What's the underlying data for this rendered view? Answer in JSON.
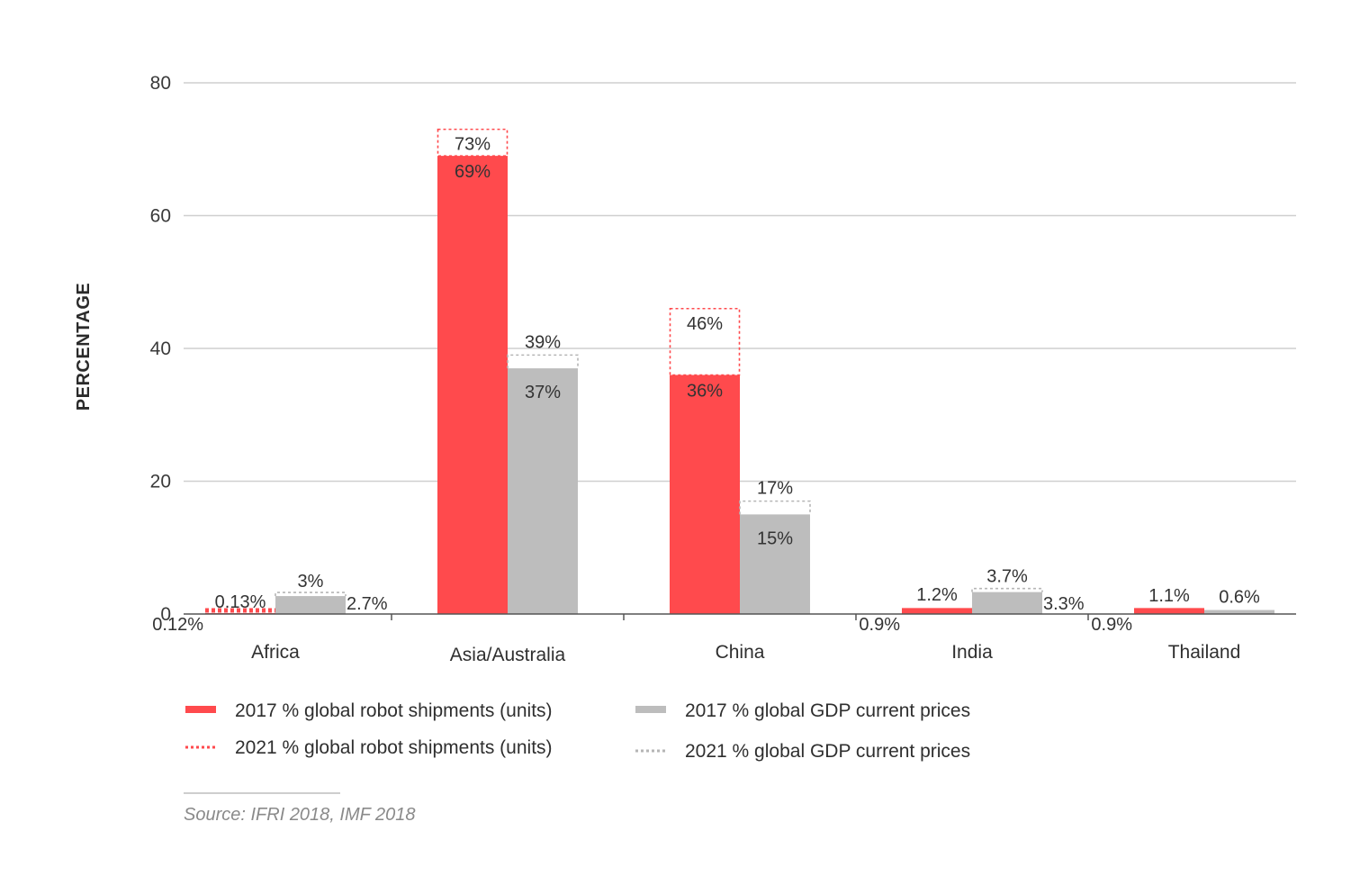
{
  "chart_data": {
    "type": "bar",
    "title": "",
    "xlabel": "",
    "ylabel": "PERCENTAGE",
    "ylim": [
      0,
      80
    ],
    "yticks": [
      0,
      20,
      40,
      60,
      80
    ],
    "grid": true,
    "categories": [
      "Africa",
      "Asia/Australia",
      "China",
      "India",
      "Thailand"
    ],
    "series": [
      {
        "name": "2017 % global robot shipments (units)",
        "style": "solid",
        "color": "#ff4a4d",
        "values": [
          0.12,
          69,
          36,
          0.9,
          0.9
        ],
        "labels": [
          "0.12%",
          "69%",
          "36%",
          "0.9%",
          "0.9%"
        ]
      },
      {
        "name": "2021 % global robot shipments (units)",
        "style": "dotted",
        "color": "#ff4a4d",
        "values": [
          0.13,
          73,
          46,
          1.2,
          1.1
        ],
        "labels": [
          "0.13%",
          "73%",
          "46%",
          "1.2%",
          "1.1%"
        ]
      },
      {
        "name": "2017 % global GDP current prices",
        "style": "solid",
        "color": "#bdbdbd",
        "values": [
          2.7,
          37,
          15,
          3.3,
          0.6
        ],
        "labels": [
          "2.7%",
          "37%",
          "15%",
          "3.3%",
          ""
        ]
      },
      {
        "name": "2021 % global GDP current prices",
        "style": "dotted",
        "color": "#bdbdbd",
        "values": [
          3,
          39,
          17,
          3.7,
          0.6
        ],
        "labels": [
          "3%",
          "39%",
          "17%",
          "3.7%",
          "0.6%"
        ]
      }
    ],
    "legend_placement": "bottom-left",
    "source": "Source: IFRI 2018, IMF 2018"
  },
  "colors": {
    "robot": "#ff4a4d",
    "gdp": "#bdbdbd",
    "grid": "#cfcfcf",
    "axis": "#555555"
  }
}
